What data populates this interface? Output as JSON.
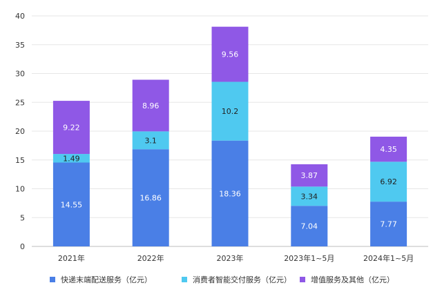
{
  "chart_data": {
    "type": "bar",
    "stacked": true,
    "categories": [
      "2021年",
      "2022年",
      "2023年",
      "2023年1~5月",
      "2024年1~5月"
    ],
    "series": [
      {
        "name": "快递末端配送服务（亿元）",
        "color": "#4a7fe6",
        "label_color": "#ffffff",
        "values": [
          14.55,
          16.86,
          18.36,
          7.04,
          7.77
        ]
      },
      {
        "name": "消费者智能交付服务（亿元）",
        "color": "#4fc9f0",
        "label_color": "#222222",
        "values": [
          1.49,
          3.1,
          10.2,
          3.34,
          6.92
        ]
      },
      {
        "name": "增值服务及其他（亿元）",
        "color": "#8f58e6",
        "label_color": "#ffffff",
        "values": [
          9.22,
          8.96,
          9.56,
          3.87,
          4.35
        ]
      }
    ],
    "ylim": [
      0,
      40
    ],
    "yticks": [
      "0",
      "5",
      "10",
      "15",
      "20",
      "25",
      "30",
      "35",
      "40"
    ],
    "grid": true,
    "legend_position": "bottom",
    "title": "",
    "xlabel": "",
    "ylabel": ""
  }
}
